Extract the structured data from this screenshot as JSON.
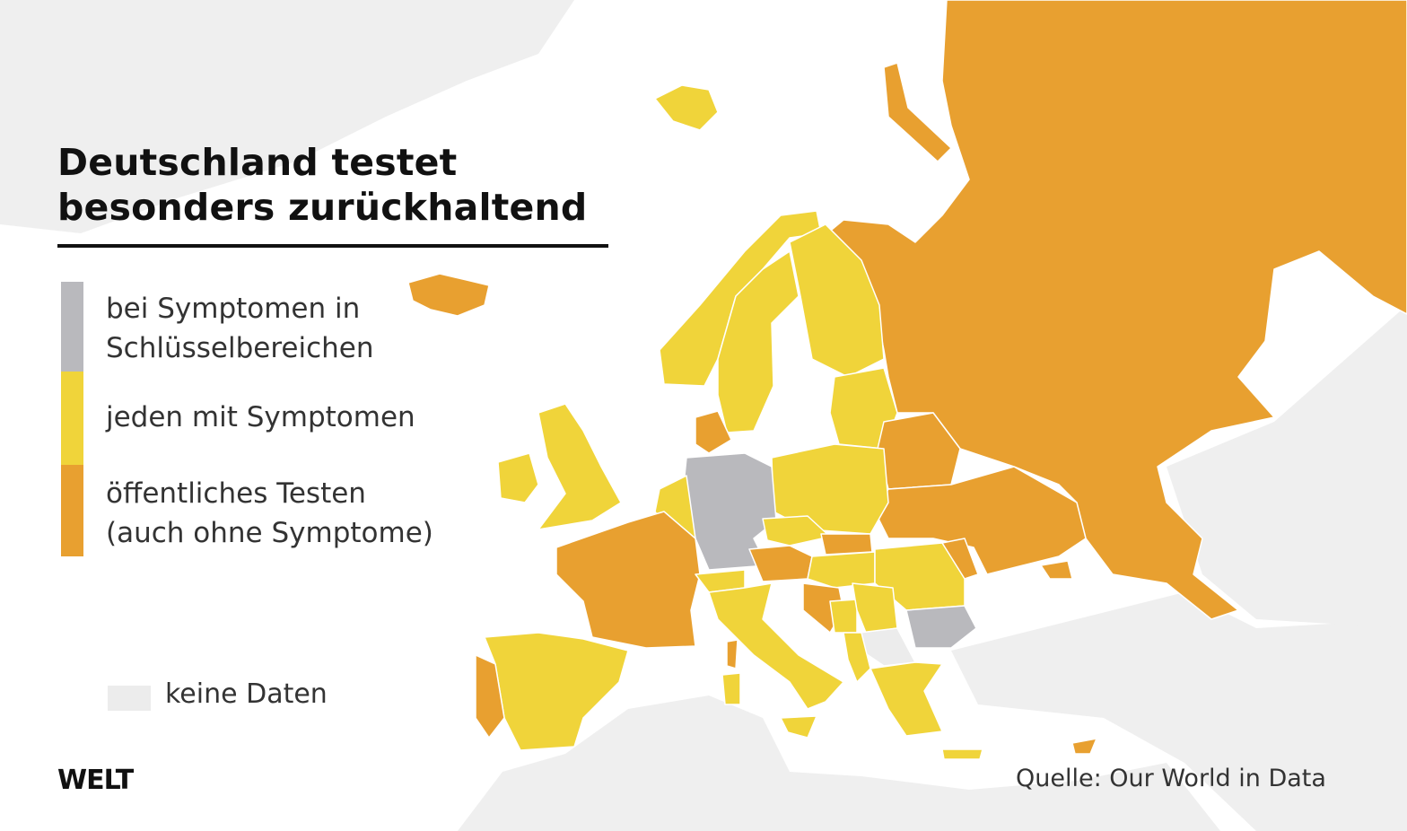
{
  "title": {
    "line1": "Deutschland testet",
    "line2": "besonders zurückhaltend"
  },
  "legend": [
    {
      "label_line1": "bei Symptomen in",
      "label_line2": "Schlüsselbereichen",
      "color": "#b9b9bd"
    },
    {
      "label_line1": "jeden mit Symptomen",
      "label_line2": "",
      "color": "#f0d43a"
    },
    {
      "label_line1": "öffentliches Testen",
      "label_line2": "(auch ohne Symptome)",
      "color": "#e8a030"
    }
  ],
  "no_data": {
    "label": "keine Daten",
    "color": "#ececec"
  },
  "colors": {
    "background_land": "#efefef",
    "sea": "#ffffff",
    "border": "#ffffff"
  },
  "logo": "WELT",
  "source": "Quelle: Our World in Data"
}
